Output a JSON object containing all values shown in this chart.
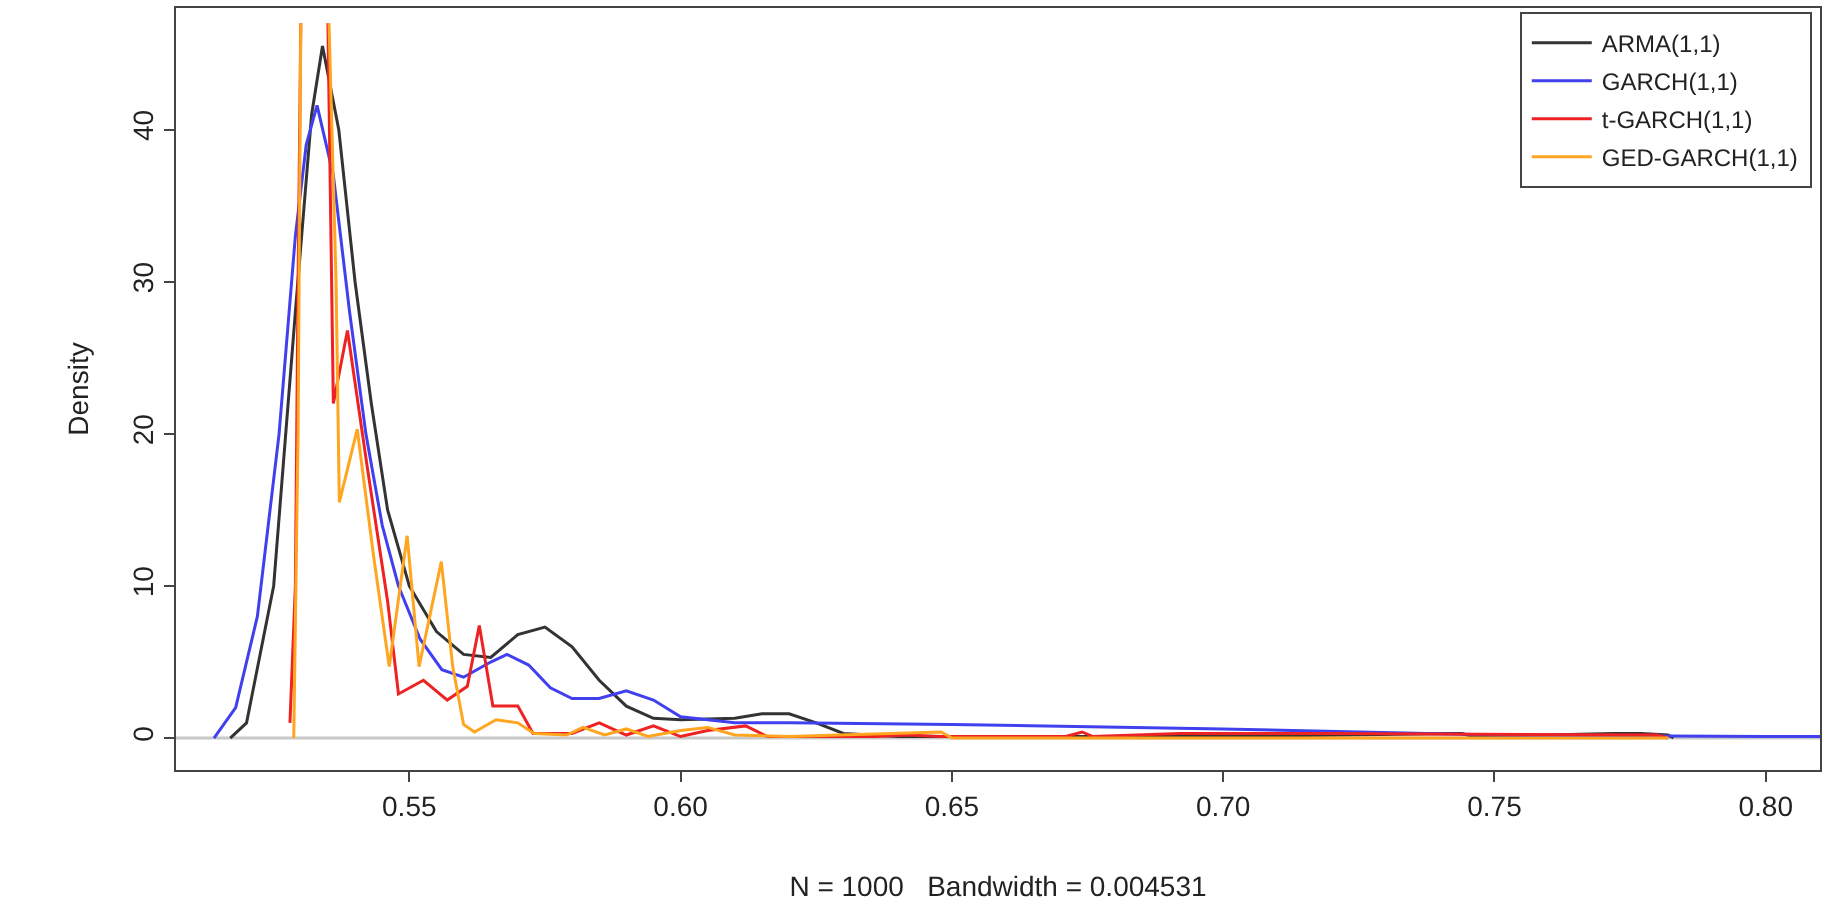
{
  "chart_data": {
    "type": "line",
    "xlabel": "N = 1000   Bandwidth = 0.004531",
    "ylabel": "Density",
    "xlim": [
      0.507,
      0.81
    ],
    "xticks": [
      0.55,
      {
        "value": 0.6,
        "label": "0.60"
      },
      0.65,
      {
        "value": 0.7,
        "label": "0.70"
      },
      0.75,
      {
        "value": 0.8,
        "label": "0.80"
      }
    ],
    "ylim": [
      -2.1,
      48
    ],
    "yticks": [
      0,
      10,
      20,
      30,
      40
    ],
    "grid": false,
    "legend": "top right",
    "marker": "none",
    "line_style": "solid",
    "ref_lines": [
      {
        "axis": "y",
        "value": 0,
        "color": "#c8c8c8"
      }
    ],
    "series": [
      {
        "name": "ARMA(1,1)",
        "color": "#333333",
        "x": [
          0.517,
          0.52,
          0.525,
          0.529,
          0.532,
          0.534,
          0.537,
          0.54,
          0.543,
          0.546,
          0.55,
          0.555,
          0.56,
          0.565,
          0.57,
          0.575,
          0.58,
          0.585,
          0.59,
          0.595,
          0.6,
          0.61,
          0.615,
          0.62,
          0.625,
          0.63,
          0.64,
          0.7,
          0.742,
          0.744,
          0.746,
          0.772,
          0.777,
          0.782,
          0.783
        ],
        "values": [
          0,
          1,
          10,
          28,
          41,
          45.5,
          40,
          30,
          22,
          15,
          10,
          7,
          5.5,
          5.3,
          6.8,
          7.3,
          6,
          3.8,
          2.1,
          1.3,
          1.2,
          1.3,
          1.6,
          1.6,
          1,
          0.3,
          0.1,
          0.1,
          0.3,
          0.3,
          0.1,
          0.3,
          0.3,
          0.2,
          0
        ]
      },
      {
        "name": "GARCH(1,1)",
        "color": "#4040ee",
        "x": [
          0.514,
          0.518,
          0.522,
          0.526,
          0.529,
          0.531,
          0.533,
          0.536,
          0.539,
          0.542,
          0.545,
          0.548,
          0.552,
          0.556,
          0.56,
          0.565,
          0.568,
          0.572,
          0.576,
          0.58,
          0.585,
          0.59,
          0.595,
          0.6,
          0.61,
          0.62,
          0.65,
          0.7,
          0.75,
          0.8,
          0.81
        ],
        "values": [
          0,
          2,
          8,
          20,
          33,
          39,
          41.6,
          37,
          28,
          20,
          14,
          10,
          6.5,
          4.5,
          4,
          5,
          5.5,
          4.8,
          3.3,
          2.6,
          2.6,
          3.1,
          2.5,
          1.4,
          1,
          1,
          0.9,
          0.6,
          0.2,
          0.1,
          0.1
        ]
      },
      {
        "name": "t-GARCH(1,1)",
        "color": "#ee2222",
        "x": [
          0.528,
          0.529,
          0.5295,
          0.53,
          0.5305,
          0.535,
          0.536,
          0.5386,
          0.5423,
          0.546,
          0.548,
          0.5526,
          0.557,
          0.5607,
          0.5629,
          0.5654,
          0.57,
          0.5728,
          0.58,
          0.585,
          0.59,
          0.595,
          0.6,
          0.605,
          0.612,
          0.616,
          0.636,
          0.642,
          0.648,
          0.671,
          0.674,
          0.676,
          0.692,
          0.72,
          0.78,
          0.782
        ],
        "values": [
          1,
          10,
          30,
          47,
          null,
          47,
          22,
          26.8,
          17.7,
          9,
          2.9,
          3.8,
          2.5,
          3.4,
          7.4,
          2.1,
          2.1,
          0.3,
          0.3,
          1,
          0.2,
          0.8,
          0.1,
          0.5,
          0.8,
          0.1,
          0.1,
          0.2,
          0.1,
          0.1,
          0.4,
          0.1,
          0.3,
          0.3,
          0.2,
          0
        ]
      },
      {
        "name": "GED-GARCH(1,1)",
        "color": "#ffa520",
        "x": [
          0.5287,
          0.5295,
          0.53,
          0.533,
          0.5352,
          0.5365,
          0.5371,
          0.5404,
          0.5434,
          0.5463,
          0.5496,
          0.5518,
          0.5559,
          0.558,
          0.56,
          0.562,
          0.566,
          0.57,
          0.573,
          0.579,
          0.582,
          0.586,
          0.59,
          0.594,
          0.6,
          0.605,
          0.61,
          0.62,
          0.648,
          0.65,
          0.78,
          0.782
        ],
        "values": [
          0,
          20,
          47,
          null,
          47,
          30,
          15.5,
          20.3,
          12,
          4.7,
          13.3,
          4.7,
          11.6,
          4.7,
          0.9,
          0.4,
          1.2,
          1,
          0.3,
          0.2,
          0.7,
          0.2,
          0.6,
          0.1,
          0.5,
          0.7,
          0.2,
          0.1,
          0.4,
          0,
          0,
          0
        ]
      }
    ]
  }
}
